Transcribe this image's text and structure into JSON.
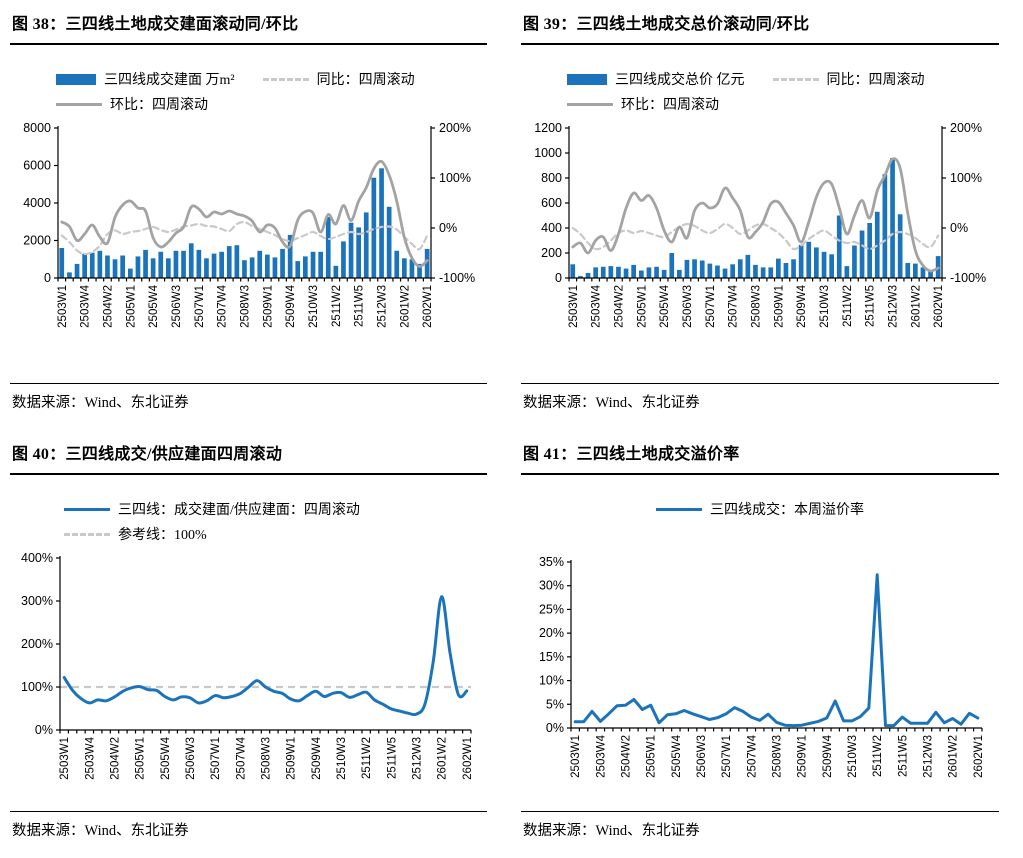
{
  "colors": {
    "bar_blue": "#1B74BB",
    "line_blue": "#1B74BB",
    "solid_gray": "#A3A3A3",
    "dashed_gray": "#C9C9C9",
    "axis": "#000000"
  },
  "weeks": [
    "2503W1",
    "2503W2",
    "2503W3",
    "2503W4",
    "2503W5",
    "2504W1",
    "2504W2",
    "2504W3",
    "2504W4",
    "2505W1",
    "2505W2",
    "2505W3",
    "2505W4",
    "2506W1",
    "2506W2",
    "2506W3",
    "2506W4",
    "2506W5",
    "2507W1",
    "2507W2",
    "2507W3",
    "2507W4",
    "2508W1",
    "2508W2",
    "2508W3",
    "2508W4",
    "2508W5",
    "2509W1",
    "2509W2",
    "2509W3",
    "2509W4",
    "2510W1",
    "2510W2",
    "2510W3",
    "2510W4",
    "2511W1",
    "2511W2",
    "2511W3",
    "2511W4",
    "2511W5",
    "2512W1",
    "2512W2",
    "2512W3",
    "2512W4",
    "2601W1",
    "2601W2",
    "2601W3",
    "2601W4",
    "2602W1"
  ],
  "panels": [
    {
      "title": "图 38：三四线土地成交建面滚动同/环比",
      "source": "数据来源：Wind、东北证券",
      "legend": [
        {
          "swatch": "bar",
          "color": "blue",
          "label": "三四线成交建面 万m²"
        },
        {
          "swatch": "dashed",
          "color": "lightgray",
          "label": "同比：四周滚动"
        },
        {
          "swatch": "solid",
          "color": "gray",
          "label": "环比：四周滚动"
        }
      ]
    },
    {
      "title": "图 39：三四线土地成交总价滚动同/环比",
      "source": "数据来源：Wind、东北证券",
      "legend": [
        {
          "swatch": "bar",
          "color": "blue",
          "label": "三四线成交总价 亿元"
        },
        {
          "swatch": "dashed",
          "color": "lightgray",
          "label": "同比：四周滚动"
        },
        {
          "swatch": "solid",
          "color": "gray",
          "label": "环比：四周滚动"
        }
      ]
    },
    {
      "title": "图 40：三四线成交/供应建面四周滚动",
      "source": "数据来源：Wind、东北证券",
      "legend": [
        {
          "swatch": "solid",
          "color": "blue",
          "label": "三四线：成交建面/供应建面：四周滚动"
        },
        {
          "swatch": "dashed",
          "color": "lightgray",
          "label": "参考线：100%"
        }
      ]
    },
    {
      "title": "图 41：三四线土地成交溢价率",
      "source": "数据来源：Wind、东北证券",
      "legend": [
        {
          "swatch": "solid",
          "color": "blue",
          "label": "三四线成交：本周溢价率"
        }
      ]
    }
  ],
  "chart_data": [
    {
      "type": "bar",
      "title": "三四线土地成交建面滚动同/环比",
      "categories": [
        "2503W1",
        "2503W2",
        "2503W3",
        "2503W4",
        "2503W5",
        "2504W1",
        "2504W2",
        "2504W3",
        "2504W4",
        "2505W1",
        "2505W2",
        "2505W3",
        "2505W4",
        "2506W1",
        "2506W2",
        "2506W3",
        "2506W4",
        "2506W5",
        "2507W1",
        "2507W2",
        "2507W3",
        "2507W4",
        "2508W1",
        "2508W2",
        "2508W3",
        "2508W4",
        "2508W5",
        "2509W1",
        "2509W2",
        "2509W3",
        "2509W4",
        "2510W1",
        "2510W2",
        "2510W3",
        "2510W4",
        "2511W1",
        "2511W2",
        "2511W3",
        "2511W4",
        "2511W5",
        "2512W1",
        "2512W2",
        "2512W3",
        "2512W4",
        "2601W1",
        "2601W2",
        "2601W3",
        "2601W4",
        "2602W1"
      ],
      "x_tick_labels_shown": [
        "2503W1",
        "2503W4",
        "2504W2",
        "2505W1",
        "2505W4",
        "2506W3",
        "2507W1",
        "2507W4",
        "2508W3",
        "2509W1",
        "2509W4",
        "2510W3",
        "2511W2",
        "2511W5",
        "2512W3",
        "2601W2",
        "2602W1"
      ],
      "series": [
        {
          "name": "三四线成交建面 万m²",
          "type": "bar",
          "axis": "left",
          "color": "blue",
          "values": [
            1600,
            300,
            750,
            1300,
            1350,
            1450,
            1200,
            1000,
            1200,
            500,
            1150,
            1500,
            1050,
            1400,
            1050,
            1450,
            1450,
            1850,
            1500,
            1050,
            1300,
            1400,
            1700,
            1750,
            950,
            1100,
            1450,
            1250,
            1100,
            1550,
            2300,
            900,
            1150,
            1400,
            1400,
            3250,
            650,
            1950,
            2950,
            2700,
            3500,
            5350,
            5850,
            3800,
            1450,
            1050,
            1000,
            750,
            1550
          ]
        },
        {
          "name": "同比：四周滚动",
          "type": "line",
          "style": "dashed",
          "smooth": true,
          "axis": "right",
          "color": "lightgray",
          "values": [
            -15,
            -28,
            -45,
            -52,
            -48,
            -35,
            -12,
            -5,
            -12,
            -8,
            -6,
            -2,
            2,
            -4,
            -8,
            -3,
            3,
            5,
            8,
            4,
            3,
            -2,
            -6,
            8,
            12,
            4,
            -2,
            -8,
            -14,
            -22,
            -26,
            -20,
            -14,
            -8,
            -16,
            -22,
            -18,
            -12,
            -8,
            -12,
            -8,
            -2,
            2,
            3,
            -3,
            -18,
            -32,
            -42,
            -15
          ]
        },
        {
          "name": "环比：四周滚动",
          "type": "line",
          "style": "solid",
          "smooth": true,
          "axis": "right",
          "color": "gray",
          "values": [
            12,
            3,
            -25,
            -12,
            6,
            -18,
            -30,
            22,
            46,
            54,
            40,
            34,
            -20,
            -38,
            -28,
            -10,
            2,
            42,
            38,
            22,
            32,
            28,
            34,
            28,
            24,
            14,
            -8,
            6,
            0,
            -28,
            -36,
            16,
            33,
            30,
            -8,
            27,
            8,
            45,
            15,
            54,
            81,
            119,
            133,
            106,
            54,
            -19,
            -60,
            -77,
            -65
          ]
        }
      ],
      "y_left": {
        "min": 0,
        "max": 8000,
        "tick_values": [
          0,
          2000,
          4000,
          6000,
          8000
        ],
        "tick_labels": [
          "0",
          "2000",
          "4000",
          "6000",
          "8000"
        ]
      },
      "y_right": {
        "min": -100,
        "max": 200,
        "tick_values": [
          -100,
          0,
          100,
          200
        ],
        "tick_labels": [
          "-100%",
          "0%",
          "100%",
          "200%"
        ]
      },
      "grid": false,
      "legend_position": "top"
    },
    {
      "type": "bar",
      "title": "三四线土地成交总价滚动同/环比",
      "categories": [
        "2503W1",
        "2503W2",
        "2503W3",
        "2503W4",
        "2503W5",
        "2504W1",
        "2504W2",
        "2504W3",
        "2504W4",
        "2505W1",
        "2505W2",
        "2505W3",
        "2505W4",
        "2506W1",
        "2506W2",
        "2506W3",
        "2506W4",
        "2506W5",
        "2507W1",
        "2507W2",
        "2507W3",
        "2507W4",
        "2508W1",
        "2508W2",
        "2508W3",
        "2508W4",
        "2508W5",
        "2509W1",
        "2509W2",
        "2509W3",
        "2509W4",
        "2510W1",
        "2510W2",
        "2510W3",
        "2510W4",
        "2511W1",
        "2511W2",
        "2511W3",
        "2511W4",
        "2511W5",
        "2512W1",
        "2512W2",
        "2512W3",
        "2512W4",
        "2601W1",
        "2601W2",
        "2601W3",
        "2601W4",
        "2602W1"
      ],
      "x_tick_labels_shown": [
        "2503W1",
        "2503W4",
        "2504W2",
        "2505W1",
        "2505W4",
        "2506W3",
        "2507W1",
        "2507W4",
        "2508W3",
        "2509W1",
        "2509W4",
        "2510W3",
        "2511W2",
        "2511W5",
        "2512W3",
        "2601W2",
        "2602W1"
      ],
      "series": [
        {
          "name": "三四线成交总价 亿元",
          "type": "bar",
          "axis": "left",
          "color": "blue",
          "values": [
            110,
            15,
            40,
            85,
            90,
            95,
            90,
            75,
            105,
            60,
            85,
            90,
            65,
            200,
            65,
            145,
            150,
            140,
            115,
            100,
            75,
            110,
            150,
            185,
            105,
            85,
            85,
            155,
            120,
            150,
            265,
            290,
            245,
            210,
            190,
            500,
            95,
            260,
            380,
            440,
            530,
            830,
            960,
            510,
            120,
            115,
            85,
            60,
            175
          ]
        },
        {
          "name": "同比：四周滚动",
          "type": "line",
          "style": "dashed",
          "smooth": true,
          "axis": "right",
          "color": "lightgray",
          "values": [
            0,
            -12,
            -30,
            -42,
            -38,
            -25,
            -10,
            -5,
            -10,
            -6,
            -10,
            -15,
            -18,
            -8,
            2,
            8,
            4,
            -5,
            -10,
            -2,
            8,
            0,
            -12,
            -5,
            5,
            8,
            0,
            -10,
            -25,
            -42,
            -35,
            -22,
            -12,
            -5,
            -15,
            -25,
            -30,
            -28,
            -35,
            -42,
            -35,
            -25,
            -12,
            -8,
            -12,
            -20,
            -32,
            -38,
            -15
          ]
        },
        {
          "name": "环比：四周滚动",
          "type": "line",
          "style": "solid",
          "smooth": true,
          "axis": "right",
          "color": "gray",
          "values": [
            -38,
            -30,
            -50,
            -25,
            -18,
            -45,
            -12,
            40,
            70,
            55,
            65,
            40,
            -5,
            -28,
            2,
            -20,
            35,
            50,
            40,
            48,
            80,
            60,
            35,
            -18,
            -8,
            12,
            48,
            52,
            30,
            5,
            -28,
            12,
            62,
            90,
            88,
            41,
            -12,
            25,
            55,
            20,
            75,
            105,
            138,
            120,
            30,
            -45,
            -75,
            -86,
            -80
          ]
        }
      ],
      "y_left": {
        "min": 0,
        "max": 1200,
        "tick_values": [
          0,
          200,
          400,
          600,
          800,
          1000,
          1200
        ],
        "tick_labels": [
          "0",
          "200",
          "400",
          "600",
          "800",
          "1000",
          "1200"
        ]
      },
      "y_right": {
        "min": -100,
        "max": 200,
        "tick_values": [
          -100,
          0,
          100,
          200
        ],
        "tick_labels": [
          "-100%",
          "0%",
          "100%",
          "200%"
        ]
      },
      "grid": false,
      "legend_position": "top"
    },
    {
      "type": "line",
      "title": "三四线成交/供应建面四周滚动",
      "categories": [
        "2503W1",
        "2503W2",
        "2503W3",
        "2503W4",
        "2503W5",
        "2504W1",
        "2504W2",
        "2504W3",
        "2504W4",
        "2505W1",
        "2505W2",
        "2505W3",
        "2505W4",
        "2506W1",
        "2506W2",
        "2506W3",
        "2506W4",
        "2506W5",
        "2507W1",
        "2507W2",
        "2507W3",
        "2507W4",
        "2508W1",
        "2508W2",
        "2508W3",
        "2508W4",
        "2508W5",
        "2509W1",
        "2509W2",
        "2509W3",
        "2509W4",
        "2510W1",
        "2510W2",
        "2510W3",
        "2510W4",
        "2511W1",
        "2511W2",
        "2511W3",
        "2511W4",
        "2511W5",
        "2512W1",
        "2512W2",
        "2512W3",
        "2512W4",
        "2601W1",
        "2601W2",
        "2601W3",
        "2601W4",
        "2602W1"
      ],
      "x_tick_labels_shown": [
        "2503W1",
        "2503W4",
        "2504W2",
        "2505W1",
        "2505W4",
        "2506W3",
        "2507W1",
        "2507W4",
        "2508W3",
        "2509W1",
        "2509W4",
        "2510W3",
        "2511W2",
        "2511W5",
        "2512W3",
        "2601W2",
        "2602W1"
      ],
      "series": [
        {
          "name": "参考线：100%",
          "type": "refline",
          "style": "dashed",
          "axis": "left",
          "color": "lightgray",
          "ref_value": 100
        },
        {
          "name": "三四线：成交建面/供应建面：四周滚动",
          "type": "line",
          "style": "solid",
          "smooth": true,
          "axis": "left",
          "color": "blue",
          "values": [
            122,
            92,
            73,
            63,
            70,
            68,
            77,
            90,
            98,
            101,
            94,
            92,
            78,
            70,
            77,
            75,
            63,
            68,
            80,
            75,
            78,
            85,
            100,
            115,
            100,
            90,
            85,
            72,
            68,
            80,
            90,
            78,
            85,
            87,
            76,
            82,
            88,
            70,
            60,
            49,
            44,
            39,
            37,
            60,
            160,
            310,
            180,
            82,
            91
          ]
        }
      ],
      "y_left": {
        "min": 0,
        "max": 400,
        "tick_values": [
          0,
          100,
          200,
          300,
          400
        ],
        "tick_labels": [
          "0%",
          "100%",
          "200%",
          "300%",
          "400%"
        ]
      },
      "grid": false,
      "legend_position": "top"
    },
    {
      "type": "line",
      "title": "三四线土地成交溢价率",
      "categories": [
        "2503W1",
        "2503W2",
        "2503W3",
        "2503W4",
        "2503W5",
        "2504W1",
        "2504W2",
        "2504W3",
        "2504W4",
        "2505W1",
        "2505W2",
        "2505W3",
        "2505W4",
        "2506W1",
        "2506W2",
        "2506W3",
        "2506W4",
        "2506W5",
        "2507W1",
        "2507W2",
        "2507W3",
        "2507W4",
        "2508W1",
        "2508W2",
        "2508W3",
        "2508W4",
        "2508W5",
        "2509W1",
        "2509W2",
        "2509W3",
        "2509W4",
        "2510W1",
        "2510W2",
        "2510W3",
        "2510W4",
        "2511W1",
        "2511W2",
        "2511W3",
        "2511W4",
        "2511W5",
        "2512W1",
        "2512W2",
        "2512W3",
        "2512W4",
        "2601W1",
        "2601W2",
        "2601W3",
        "2601W4",
        "2602W1"
      ],
      "x_tick_labels_shown": [
        "2503W1",
        "2503W4",
        "2504W2",
        "2505W1",
        "2505W4",
        "2506W3",
        "2507W1",
        "2507W4",
        "2508W3",
        "2509W1",
        "2509W4",
        "2510W3",
        "2511W2",
        "2511W5",
        "2512W3",
        "2601W2",
        "2602W1"
      ],
      "series": [
        {
          "name": "三四线成交：本周溢价率",
          "type": "line",
          "style": "solid",
          "smooth": false,
          "axis": "left",
          "color": "blue",
          "values": [
            1.3,
            1.3,
            3.5,
            1.4,
            3.0,
            4.7,
            4.8,
            6.0,
            3.9,
            4.8,
            1.1,
            2.8,
            3.0,
            3.7,
            3.0,
            2.4,
            1.8,
            2.2,
            3.0,
            4.3,
            3.5,
            2.3,
            1.6,
            2.9,
            1.2,
            0.6,
            0.5,
            0.6,
            1.0,
            1.4,
            2.1,
            5.7,
            1.5,
            1.5,
            2.4,
            4.2,
            32.3,
            0.5,
            0.5,
            2.3,
            1.0,
            1.0,
            1.0,
            3.3,
            1.1,
            2.0,
            0.8,
            3.1,
            2.1
          ]
        }
      ],
      "y_left": {
        "min": 0,
        "max": 35,
        "tick_values": [
          0,
          5,
          10,
          15,
          20,
          25,
          30,
          35
        ],
        "tick_labels": [
          "0%",
          "5%",
          "10%",
          "15%",
          "20%",
          "25%",
          "30%",
          "35%"
        ]
      },
      "grid": false,
      "legend_position": "top"
    }
  ]
}
